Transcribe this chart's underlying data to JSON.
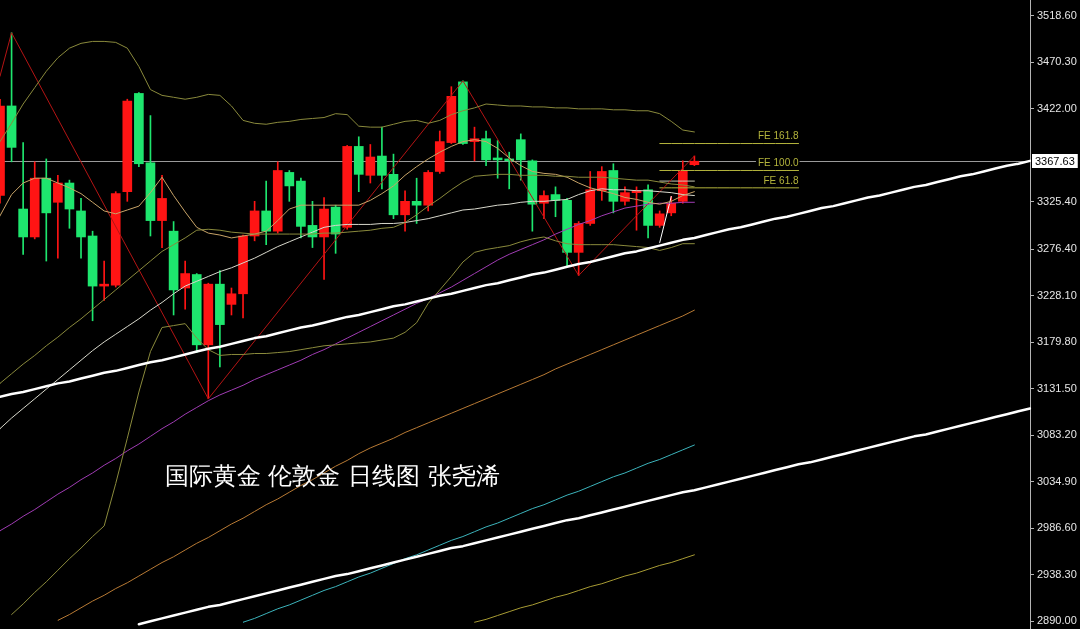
{
  "chart_data": {
    "type": "candlestick",
    "categories": [
      null,
      null,
      null,
      null,
      null,
      null,
      null,
      null,
      null,
      null,
      null,
      null,
      null,
      null,
      null,
      null,
      null,
      null,
      null,
      null,
      null,
      null,
      null,
      null,
      null,
      null,
      null,
      null,
      null,
      null,
      null,
      null,
      null,
      null,
      null,
      null,
      null,
      null,
      null,
      null,
      null,
      null,
      null,
      null,
      null,
      null,
      null,
      null,
      null,
      null,
      null,
      null,
      null,
      null,
      null,
      null,
      null,
      null,
      null,
      null,
      null,
      null,
      null,
      null,
      null,
      null,
      null,
      null,
      null,
      null,
      null,
      null,
      null,
      null,
      null,
      null,
      null,
      null,
      null,
      null,
      null,
      null,
      null,
      null,
      null,
      null,
      null,
      null,
      null,
      null
    ],
    "ohlc": [
      [
        3332,
        3432,
        3324,
        3425
      ],
      [
        3425,
        3501,
        3367,
        3382
      ],
      [
        3318,
        3387,
        3271,
        3289
      ],
      [
        3289,
        3367,
        3287,
        3350
      ],
      [
        3350,
        3370,
        3264,
        3314
      ],
      [
        3325,
        3353,
        3267,
        3345
      ],
      [
        3345,
        3348,
        3298,
        3318
      ],
      [
        3316,
        3329,
        3267,
        3289
      ],
      [
        3290,
        3295,
        3202,
        3238
      ],
      [
        3238,
        3264,
        3223,
        3240
      ],
      [
        3239,
        3336,
        3237,
        3334
      ],
      [
        3336,
        3432,
        3326,
        3430
      ],
      [
        3438,
        3439,
        3362,
        3365
      ],
      [
        3366,
        3415,
        3290,
        3306
      ],
      [
        3306,
        3353,
        3278,
        3329
      ],
      [
        3295,
        3305,
        3208,
        3234
      ],
      [
        3236,
        3264,
        3214,
        3251
      ],
      [
        3250,
        3251,
        3169,
        3177
      ],
      [
        3177,
        3241,
        3121,
        3240
      ],
      [
        3240,
        3254,
        3154,
        3198
      ],
      [
        3219,
        3236,
        3208,
        3230
      ],
      [
        3230,
        3291,
        3205,
        3290
      ],
      [
        3290,
        3326,
        3285,
        3316
      ],
      [
        3316,
        3347,
        3281,
        3295
      ],
      [
        3295,
        3367,
        3293,
        3358
      ],
      [
        3356,
        3358,
        3326,
        3342
      ],
      [
        3347,
        3350,
        3288,
        3300
      ],
      [
        3301,
        3326,
        3278,
        3289
      ],
      [
        3289,
        3330,
        3245,
        3318
      ],
      [
        3320,
        3322,
        3272,
        3292
      ],
      [
        3299,
        3384,
        3297,
        3383
      ],
      [
        3383,
        3393,
        3336,
        3354
      ],
      [
        3353,
        3385,
        3345,
        3372
      ],
      [
        3373,
        3403,
        3339,
        3353
      ],
      [
        3354,
        3375,
        3308,
        3312
      ],
      [
        3312,
        3337,
        3295,
        3326
      ],
      [
        3326,
        3350,
        3303,
        3322
      ],
      [
        3322,
        3358,
        3316,
        3356
      ],
      [
        3357,
        3399,
        3355,
        3388
      ],
      [
        3387,
        3445,
        3386,
        3435
      ],
      [
        3450,
        3451,
        3385,
        3386
      ],
      [
        3388,
        3403,
        3368,
        3391
      ],
      [
        3391,
        3399,
        3363,
        3369
      ],
      [
        3371,
        3389,
        3350,
        3369
      ],
      [
        3370,
        3377,
        3339,
        3368
      ],
      [
        3390,
        3396,
        3348,
        3369
      ],
      [
        3368,
        3369,
        3295,
        3323
      ],
      [
        3324,
        3337,
        3308,
        3332
      ],
      [
        3333,
        3341,
        3310,
        3327
      ],
      [
        3327,
        3329,
        3259,
        3273
      ],
      [
        3273,
        3305,
        3249,
        3303
      ],
      [
        3303,
        3357,
        3301,
        3338
      ],
      [
        3337,
        3362,
        3327,
        3357
      ],
      [
        3358,
        3365,
        3314,
        3326
      ],
      [
        3326,
        3341,
        3322,
        3335
      ],
      [
        3335,
        3341,
        3296,
        3337
      ],
      [
        3338,
        3343,
        3288,
        3301
      ],
      [
        3301,
        3316,
        3299,
        3313
      ],
      [
        3314,
        3331,
        3311,
        3324
      ],
      [
        3326,
        3368,
        3324,
        3358
      ],
      [
        3364,
        3373,
        3363,
        3367.63
      ],
      null,
      null,
      null,
      null,
      null,
      null,
      null,
      null,
      null,
      null,
      null,
      null,
      null,
      null,
      null,
      null,
      null,
      null,
      null,
      null,
      null,
      null,
      null,
      null,
      null,
      null,
      null,
      null,
      null
    ],
    "colors": [
      "#ff1414",
      "#1ee66e",
      "#1ee66e",
      "#ff1414",
      "#1ee66e",
      "#ff1414",
      "#1ee66e",
      "#1ee66e",
      "#1ee66e",
      "#ff1414",
      "#ff1414",
      "#ff1414",
      "#1ee66e",
      "#1ee66e",
      "#ff1414",
      "#1ee66e",
      "#ff1414",
      "#1ee66e",
      "#ff1414",
      "#1ee66e",
      "#ff1414",
      "#ff1414",
      "#ff1414",
      "#1ee66e",
      "#ff1414",
      "#1ee66e",
      "#1ee66e",
      "#1ee66e",
      "#ff1414",
      "#1ee66e",
      "#ff1414",
      "#1ee66e",
      "#ff1414",
      "#1ee66e",
      "#1ee66e",
      "#ff1414",
      "#1ee66e",
      "#ff1414",
      "#ff1414",
      "#ff1414",
      "#1ee66e",
      "#ff1414",
      "#1ee66e",
      "#1ee66e",
      "#1ee66e",
      "#1ee66e",
      "#1ee66e",
      "#ff1414",
      "#1ee66e",
      "#1ee66e",
      "#ff1414",
      "#ff1414",
      "#ff1414",
      "#1ee66e",
      "#ff1414",
      "#ff1414",
      "#1ee66e",
      "#ff1414",
      "#ff1414",
      "#ff1414",
      "#ff1414",
      null,
      null,
      null,
      null,
      null,
      null,
      null,
      null,
      null,
      null,
      null,
      null,
      null,
      null,
      null,
      null,
      null,
      null,
      null,
      null,
      null,
      null,
      null,
      null,
      null,
      null,
      null,
      null,
      null
    ],
    "series": [
      {
        "type": "line",
        "color": "#ffffff",
        "values": [
          3123,
          3126,
          3128,
          3131,
          3134,
          3137,
          3139,
          3142,
          3145,
          3148,
          3150,
          3153,
          3156,
          3159,
          3161,
          3164,
          3167,
          3170,
          3173,
          3175,
          3178,
          3181,
          3184,
          3186,
          3189,
          3192,
          3195,
          3197,
          3200,
          3203,
          3206,
          3208,
          3211,
          3214,
          3217,
          3219,
          3222,
          3225,
          3228,
          3230,
          3233,
          3236,
          3239,
          3241,
          3244,
          3247,
          3250,
          3252,
          3255,
          3258,
          3261,
          3263,
          3266,
          3269,
          3272,
          3274,
          3277,
          3280,
          3283,
          3286,
          3288,
          3291,
          3294,
          3297,
          3299,
          3302,
          3305,
          3308,
          3310,
          3313,
          3316,
          3319,
          3321,
          3324,
          3327,
          3330,
          3332,
          3335,
          3338,
          3341,
          3343,
          3346,
          3349,
          3352,
          3354,
          3357,
          3360,
          3363,
          3365,
          3368
        ]
      },
      {
        "type": "line",
        "color": "#ffffff",
        "values": [
          null,
          null,
          null,
          null,
          null,
          null,
          null,
          null,
          null,
          null,
          null,
          null,
          2887,
          2890,
          2893,
          2896,
          2899,
          2902,
          2905,
          2907,
          2910,
          2913,
          2916,
          2919,
          2922,
          2925,
          2928,
          2931,
          2934,
          2937,
          2939,
          2942,
          2945,
          2948,
          2951,
          2954,
          2957,
          2960,
          2963,
          2966,
          2968,
          2971,
          2974,
          2977,
          2980,
          2983,
          2986,
          2989,
          2992,
          2995,
          2997,
          3000,
          3003,
          3006,
          3009,
          3012,
          3015,
          3018,
          3021,
          3024,
          3026,
          3029,
          3032,
          3035,
          3038,
          3041,
          3044,
          3047,
          3050,
          3053,
          3055,
          3058,
          3061,
          3064,
          3067,
          3070,
          3073,
          3076,
          3079,
          3082,
          3084,
          3087,
          3090,
          3093,
          3096,
          3099,
          3102,
          3105,
          3108,
          3111
        ]
      },
      {
        "type": "line",
        "color": "#8a8a3c",
        "values": [
          3388,
          3407,
          3427,
          3444,
          3461,
          3475,
          3485,
          3490,
          3492,
          3492,
          3491,
          3485,
          3466,
          3442,
          3436,
          3434,
          3432,
          3434,
          3437,
          3436,
          3425,
          3410,
          3407,
          3406,
          3408,
          3409,
          3411,
          3412,
          3413,
          3417,
          3416,
          3404,
          3403,
          3403,
          3406,
          3409,
          3410,
          3407,
          3410,
          3416,
          3420,
          3423,
          3427,
          3426,
          3425,
          3425,
          3424,
          3424,
          3423,
          3423,
          3422,
          3422,
          3422,
          3421,
          3421,
          3420,
          3420,
          3417,
          3409,
          3400,
          3398,
          null,
          null,
          null,
          null,
          null,
          null,
          null,
          null,
          null,
          null,
          null,
          null,
          null,
          null,
          null,
          null,
          null,
          null,
          null,
          null,
          null,
          null,
          null,
          null,
          null,
          null,
          null,
          null,
          null
        ]
      },
      {
        "type": "line",
        "color": "#8a8a3c",
        "values": [
          null,
          2897,
          2908,
          2920,
          2931,
          2943,
          2955,
          2966,
          2978,
          2989,
          3033,
          3080,
          3128,
          3170,
          3195,
          3197,
          3199,
          3184,
          3172,
          3166,
          3167,
          3167,
          3168,
          3168,
          3169,
          3170,
          3172,
          3174,
          3176,
          3177,
          3178,
          3179,
          3180,
          3182,
          3184,
          3190,
          3200,
          3220,
          3234,
          3248,
          3263,
          3273,
          3276,
          3278,
          3280,
          3284,
          3287,
          3289,
          3285,
          3282,
          3281,
          3281,
          3281,
          3281,
          3280,
          3279,
          3278,
          3275,
          3278,
          3282,
          3282,
          null,
          null,
          null,
          null,
          null,
          null,
          null,
          null,
          null,
          null,
          null,
          null,
          null,
          null,
          null,
          null,
          null,
          null,
          null,
          null,
          null,
          null,
          null,
          null,
          null,
          null,
          null,
          null,
          null
        ]
      },
      {
        "type": "line",
        "color": "#8a8a3c",
        "values": [
          3137,
          3147,
          3157,
          3166,
          3176,
          3185,
          3195,
          3204,
          3214,
          3224,
          3234,
          3244,
          3254,
          3264,
          3274,
          3281,
          3288,
          3296,
          3297,
          3296,
          3294,
          3293,
          3292,
          3292,
          3292,
          3292,
          3292,
          3292,
          3293,
          3293,
          3294,
          3295,
          3296,
          3298,
          3299,
          3304,
          3312,
          3321,
          3329,
          3338,
          3346,
          3352,
          3353,
          3354,
          3354,
          3353,
          3353,
          3353,
          3352,
          3352,
          3351,
          3351,
          3351,
          3350,
          3349,
          3348,
          3348,
          3346,
          3344,
          3343,
          3341,
          null,
          null,
          null,
          null,
          null,
          null,
          null,
          null,
          null,
          null,
          null,
          null,
          null,
          null,
          null,
          null,
          null,
          null,
          null,
          null,
          null,
          null,
          null,
          null,
          null,
          null,
          null,
          null,
          null
        ]
      },
      {
        "type": "line",
        "color": "#c8a468",
        "values": [
          3311,
          3333,
          3345,
          3350,
          3350,
          3345,
          3340,
          3334,
          3325,
          3316,
          3313,
          3317,
          3321,
          3335,
          3351,
          3332,
          3315,
          3299,
          3293,
          3291,
          3288,
          3290,
          3292,
          3295,
          3306,
          3318,
          3322,
          3322,
          3322,
          3322,
          3322,
          3322,
          3327,
          3334,
          3342,
          3353,
          3362,
          3370,
          3377,
          3383,
          3388,
          3390,
          3388,
          3381,
          3371,
          3363,
          3357,
          3355,
          3354,
          3351,
          3345,
          3340,
          3337,
          3334,
          3330,
          3328,
          3325,
          3323,
          3326,
          3332,
          3336,
          null,
          null,
          null,
          null,
          null,
          null,
          null,
          null,
          null,
          null,
          null,
          null,
          null,
          null,
          null,
          null,
          null,
          null,
          null,
          null,
          null,
          null,
          null,
          null,
          null,
          null,
          null,
          null,
          null
        ]
      },
      {
        "type": "line",
        "color": "#d8d8cc",
        "values": [
          3090,
          3101,
          3111,
          3121,
          3131,
          3141,
          3151,
          3161,
          3171,
          3180,
          3188,
          3196,
          3204,
          3213,
          3221,
          3230,
          3238,
          3243,
          3248,
          3253,
          3257,
          3262,
          3267,
          3273,
          3279,
          3284,
          3289,
          3294,
          3299,
          3301,
          3302,
          3302,
          3302,
          3303,
          3303,
          3304,
          3306,
          3308,
          3311,
          3314,
          3317,
          3318,
          3320,
          3322,
          3323,
          3325,
          3326,
          3326,
          3327,
          3328,
          3333,
          3337,
          3339,
          3338,
          3338,
          3337,
          3337,
          3336,
          3335,
          3333,
          3332,
          null,
          null,
          null,
          null,
          null,
          null,
          null,
          null,
          null,
          null,
          null,
          null,
          null,
          null,
          null,
          null,
          null,
          null,
          null,
          null,
          null,
          null,
          null,
          null,
          null,
          null,
          null,
          null,
          null
        ]
      },
      {
        "type": "line",
        "color": "#a03cb4",
        "values": [
          2984,
          2991,
          2999,
          3006,
          3014,
          3022,
          3029,
          3037,
          3044,
          3052,
          3059,
          3067,
          3074,
          3082,
          3090,
          3097,
          3105,
          3112,
          3119,
          3125,
          3130,
          3135,
          3141,
          3146,
          3151,
          3156,
          3161,
          3167,
          3172,
          3178,
          3184,
          3190,
          3196,
          3202,
          3208,
          3214,
          3220,
          3225,
          3231,
          3237,
          3244,
          3251,
          3258,
          3265,
          3271,
          3276,
          3281,
          3286,
          3292,
          3297,
          3302,
          3306,
          3311,
          3315,
          3319,
          3321,
          3323,
          3324,
          3324,
          3325,
          3325,
          null,
          null,
          null,
          null,
          null,
          null,
          null,
          null,
          null,
          null,
          null,
          null,
          null,
          null,
          null,
          null,
          null,
          null,
          null,
          null,
          null,
          null,
          null,
          null,
          null,
          null,
          null,
          null,
          null
        ]
      },
      {
        "type": "line",
        "color": "#b87a34",
        "values": [
          null,
          null,
          null,
          null,
          null,
          2891,
          2897,
          2904,
          2911,
          2917,
          2924,
          2930,
          2937,
          2944,
          2951,
          2957,
          2964,
          2971,
          2977,
          2984,
          2991,
          2997,
          3004,
          3011,
          3017,
          3024,
          3031,
          3037,
          3044,
          3051,
          3057,
          3064,
          3070,
          3075,
          3080,
          3086,
          3091,
          3096,
          3101,
          3106,
          3111,
          3116,
          3121,
          3126,
          3131,
          3136,
          3141,
          3146,
          3152,
          3157,
          3162,
          3167,
          3172,
          3177,
          3182,
          3187,
          3192,
          3197,
          3202,
          3207,
          3213,
          null,
          null,
          null,
          null,
          null,
          null,
          null,
          null,
          null,
          null,
          null,
          null,
          null,
          null,
          null,
          null,
          null,
          null,
          null,
          null,
          null,
          null,
          null,
          null,
          null,
          null,
          null,
          null,
          null
        ]
      },
      {
        "type": "line",
        "color": "#3cb4bc",
        "values": [
          null,
          null,
          null,
          null,
          null,
          null,
          null,
          null,
          null,
          null,
          null,
          null,
          null,
          null,
          null,
          null,
          null,
          null,
          null,
          null,
          null,
          2889,
          2893,
          2898,
          2903,
          2907,
          2912,
          2917,
          2922,
          2926,
          2931,
          2936,
          2940,
          2945,
          2950,
          2955,
          2959,
          2964,
          2969,
          2974,
          2978,
          2983,
          2988,
          2992,
          2997,
          3002,
          3007,
          3011,
          3016,
          3021,
          3025,
          3030,
          3035,
          3040,
          3044,
          3049,
          3054,
          3058,
          3063,
          3068,
          3073,
          null,
          null,
          null,
          null,
          null,
          null,
          null,
          null,
          null,
          null,
          null,
          null,
          null,
          null,
          null,
          null,
          null,
          null,
          null,
          null,
          null,
          null,
          null,
          null,
          null,
          null,
          null,
          null,
          null
        ]
      },
      {
        "type": "line",
        "color": "#a89c34",
        "values": [
          null,
          null,
          null,
          null,
          null,
          null,
          null,
          null,
          null,
          null,
          null,
          null,
          null,
          null,
          null,
          null,
          null,
          null,
          null,
          null,
          null,
          null,
          null,
          null,
          null,
          null,
          null,
          null,
          null,
          null,
          null,
          null,
          null,
          null,
          null,
          null,
          null,
          null,
          null,
          null,
          null,
          2889,
          2892,
          2896,
          2900,
          2904,
          2907,
          2911,
          2915,
          2918,
          2922,
          2926,
          2929,
          2933,
          2937,
          2940,
          2944,
          2948,
          2951,
          2955,
          2959,
          null,
          null,
          null,
          null,
          null,
          null,
          null,
          null,
          null,
          null,
          null,
          null,
          null,
          null,
          null,
          null,
          null,
          null,
          null,
          null,
          null,
          null,
          null,
          null,
          null,
          null,
          null,
          null,
          null
        ]
      },
      {
        "type": "line",
        "color": "#b41414",
        "values": [
          3456,
          3501,
          null,
          null,
          null,
          null,
          null,
          null,
          null,
          null,
          null,
          null,
          null,
          null,
          null,
          null,
          null,
          null,
          3121,
          null,
          null,
          null,
          null,
          null,
          null,
          null,
          null,
          null,
          null,
          null,
          null,
          null,
          null,
          null,
          null,
          null,
          null,
          null,
          null,
          null,
          3451,
          null,
          null,
          null,
          null,
          null,
          null,
          null,
          null,
          null,
          3249,
          null,
          null,
          null,
          null,
          null,
          null,
          null,
          null,
          null,
          3373,
          null,
          null,
          null,
          null,
          null,
          null,
          null,
          null,
          null,
          null,
          null,
          null,
          null,
          null,
          null,
          null,
          null,
          null,
          null,
          null,
          null,
          null,
          null,
          null,
          null,
          null,
          null,
          null,
          null
        ]
      },
      {
        "type": "line",
        "name": "FE 161.8",
        "color": "#b4b43c",
        "values": [
          null,
          null,
          null,
          null,
          null,
          null,
          null,
          null,
          null,
          null,
          null,
          null,
          null,
          null,
          null,
          null,
          null,
          null,
          null,
          null,
          null,
          null,
          null,
          null,
          null,
          null,
          null,
          null,
          null,
          null,
          null,
          null,
          null,
          null,
          null,
          null,
          null,
          null,
          null,
          null,
          null,
          null,
          null,
          null,
          null,
          null,
          null,
          null,
          null,
          null,
          null,
          null,
          null,
          null,
          null,
          null,
          null,
          3386,
          3386,
          3386,
          3386,
          3386,
          3386,
          3386,
          3386,
          3386,
          3386,
          3386,
          3386,
          3386,
          null,
          null,
          null,
          null,
          null,
          null,
          null,
          null,
          null,
          null,
          null,
          null,
          null,
          null,
          null,
          null,
          null,
          null,
          null,
          null
        ]
      },
      {
        "type": "line",
        "name": "FE 100.0",
        "color": "#b4b43c",
        "values": [
          null,
          null,
          null,
          null,
          null,
          null,
          null,
          null,
          null,
          null,
          null,
          null,
          null,
          null,
          null,
          null,
          null,
          null,
          null,
          null,
          null,
          null,
          null,
          null,
          null,
          null,
          null,
          null,
          null,
          null,
          null,
          null,
          null,
          null,
          null,
          null,
          null,
          null,
          null,
          null,
          null,
          null,
          null,
          null,
          null,
          null,
          null,
          null,
          null,
          null,
          null,
          null,
          null,
          null,
          null,
          null,
          null,
          3358,
          3358,
          3358,
          3358,
          3358,
          3358,
          3358,
          3358,
          3358,
          3358,
          3358,
          3358,
          3358,
          null,
          null,
          null,
          null,
          null,
          null,
          null,
          null,
          null,
          null,
          null,
          null,
          null,
          null,
          null,
          null,
          null,
          null,
          null,
          null
        ]
      },
      {
        "type": "line",
        "name": "FE 61.8",
        "color": "#b4b43c",
        "values": [
          null,
          null,
          null,
          null,
          null,
          null,
          null,
          null,
          null,
          null,
          null,
          null,
          null,
          null,
          null,
          null,
          null,
          null,
          null,
          null,
          null,
          null,
          null,
          null,
          null,
          null,
          null,
          null,
          null,
          null,
          null,
          null,
          null,
          null,
          null,
          null,
          null,
          null,
          null,
          null,
          null,
          null,
          null,
          null,
          null,
          null,
          null,
          null,
          null,
          null,
          null,
          null,
          null,
          null,
          null,
          null,
          null,
          3340,
          3340,
          3340,
          3340,
          3340,
          3340,
          3340,
          3340,
          3340,
          3340,
          3340,
          3340,
          3340,
          null,
          null,
          null,
          null,
          null,
          null,
          null,
          null,
          null,
          null,
          null,
          null,
          null,
          null,
          null,
          null,
          null,
          null,
          null,
          null
        ]
      },
      {
        "type": "line",
        "color": "#c8c8b4",
        "values": [
          null,
          null,
          null,
          null,
          null,
          null,
          null,
          null,
          null,
          null,
          null,
          null,
          null,
          null,
          null,
          null,
          null,
          null,
          null,
          null,
          null,
          null,
          null,
          null,
          null,
          null,
          null,
          null,
          null,
          null,
          null,
          null,
          null,
          null,
          null,
          null,
          null,
          null,
          null,
          null,
          null,
          null,
          null,
          null,
          null,
          null,
          null,
          null,
          null,
          null,
          null,
          null,
          null,
          null,
          null,
          null,
          null,
          3347,
          3347,
          3347,
          3347,
          null,
          null,
          null,
          null,
          null,
          null,
          null,
          null,
          null,
          null,
          null,
          null,
          null,
          null,
          null,
          null,
          null,
          null,
          null,
          null,
          null,
          null,
          null,
          null,
          null,
          null,
          null,
          null,
          null
        ]
      },
      {
        "type": "line",
        "color": "#ffffff",
        "values": [
          null,
          null,
          null,
          null,
          null,
          null,
          null,
          null,
          null,
          null,
          null,
          null,
          null,
          null,
          null,
          null,
          null,
          null,
          null,
          null,
          null,
          null,
          null,
          null,
          null,
          null,
          null,
          null,
          null,
          null,
          null,
          null,
          null,
          null,
          null,
          null,
          null,
          null,
          null,
          null,
          null,
          null,
          null,
          null,
          null,
          null,
          null,
          null,
          null,
          null,
          null,
          null,
          null,
          null,
          null,
          null,
          null,
          3283,
          3331,
          null,
          null,
          null,
          null,
          null,
          null,
          null,
          null,
          null,
          null,
          null,
          null,
          null,
          null,
          null,
          null,
          null,
          null,
          null,
          null,
          null,
          null,
          null,
          null,
          null,
          null,
          null,
          null,
          null,
          null,
          null
        ]
      }
    ],
    "ylim": [
      2882,
      3535
    ],
    "yticks": [
      {
        "value": 2890,
        "label": "2890.00"
      },
      {
        "value": 2938.3,
        "label": "2938.30"
      },
      {
        "value": 2986.6,
        "label": "2986.60"
      },
      {
        "value": 3034.9,
        "label": "3034.90"
      },
      {
        "value": 3083.2,
        "label": "3083.20"
      },
      {
        "value": 3131.5,
        "label": "3131.50"
      },
      {
        "value": 3179.8,
        "label": "3179.80"
      },
      {
        "value": 3228.1,
        "label": "3228.10"
      },
      {
        "value": 3276.4,
        "label": "3276.40"
      },
      {
        "value": 3325.4,
        "label": "3325.40"
      },
      {
        "value": 3422,
        "label": "3422.00"
      },
      {
        "value": 3470.3,
        "label": "3470.30"
      },
      {
        "value": 3518.6,
        "label": "3518.60"
      }
    ],
    "tick_labels": "y",
    "ref_lines": [
      {
        "axis": "y",
        "value": 3367.63,
        "label": "3367.63",
        "color": "#9a9a9a"
      }
    ],
    "annotations": [
      "国际黄金 伦敦金 日线图 张尧浠"
    ]
  }
}
